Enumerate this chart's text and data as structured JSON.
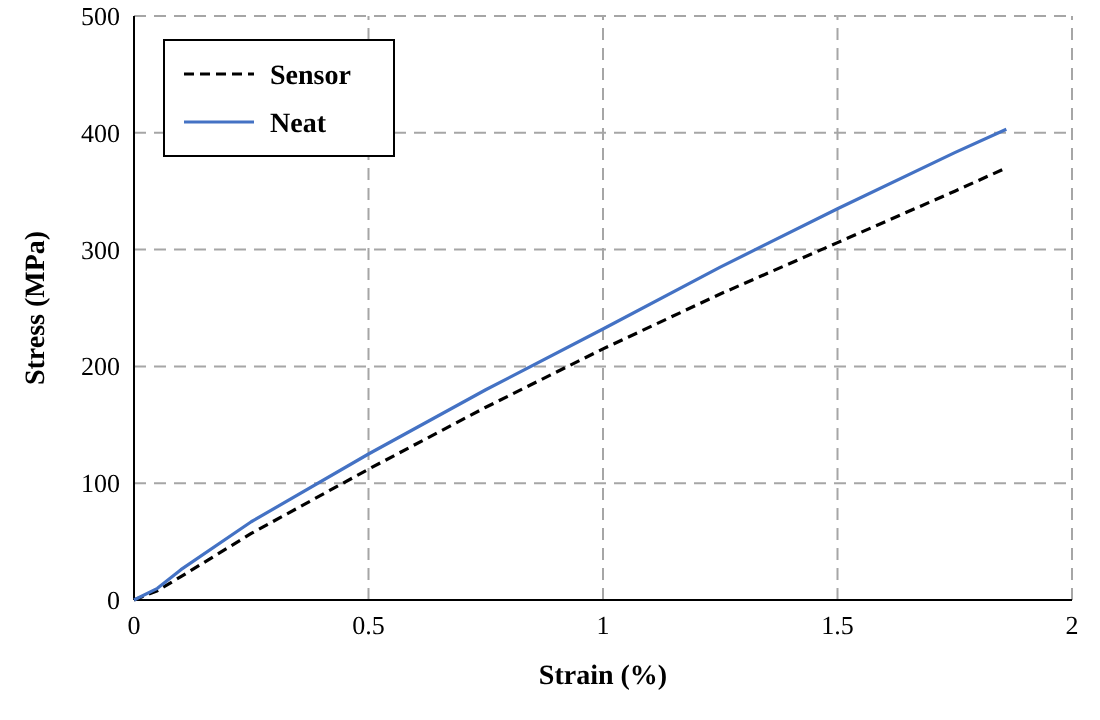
{
  "chart_data": {
    "type": "line",
    "xlabel": "Strain (%)",
    "ylabel": "Stress (MPa)",
    "xlim": [
      0,
      2
    ],
    "ylim": [
      0,
      500
    ],
    "xticks": [
      0,
      0.5,
      1,
      1.5,
      2
    ],
    "yticks": [
      0,
      100,
      200,
      300,
      400,
      500
    ],
    "grid": true,
    "legend": "top left",
    "series": [
      {
        "name": "Sensor",
        "color": "#000000",
        "line_style": "dashed",
        "x": [
          0,
          0.05,
          0.1,
          0.25,
          0.5,
          0.75,
          1,
          1.25,
          1.5,
          1.75,
          1.86
        ],
        "values": [
          0,
          8,
          20,
          57,
          112,
          165,
          215,
          262,
          306,
          350,
          370
        ]
      },
      {
        "name": "Neat",
        "color": "#4472c4",
        "line_style": "solid",
        "x": [
          0,
          0.05,
          0.1,
          0.25,
          0.5,
          0.75,
          1,
          1.25,
          1.5,
          1.75,
          1.86
        ],
        "values": [
          0,
          10,
          26,
          67,
          125,
          180,
          232,
          285,
          335,
          383,
          403
        ]
      }
    ]
  }
}
